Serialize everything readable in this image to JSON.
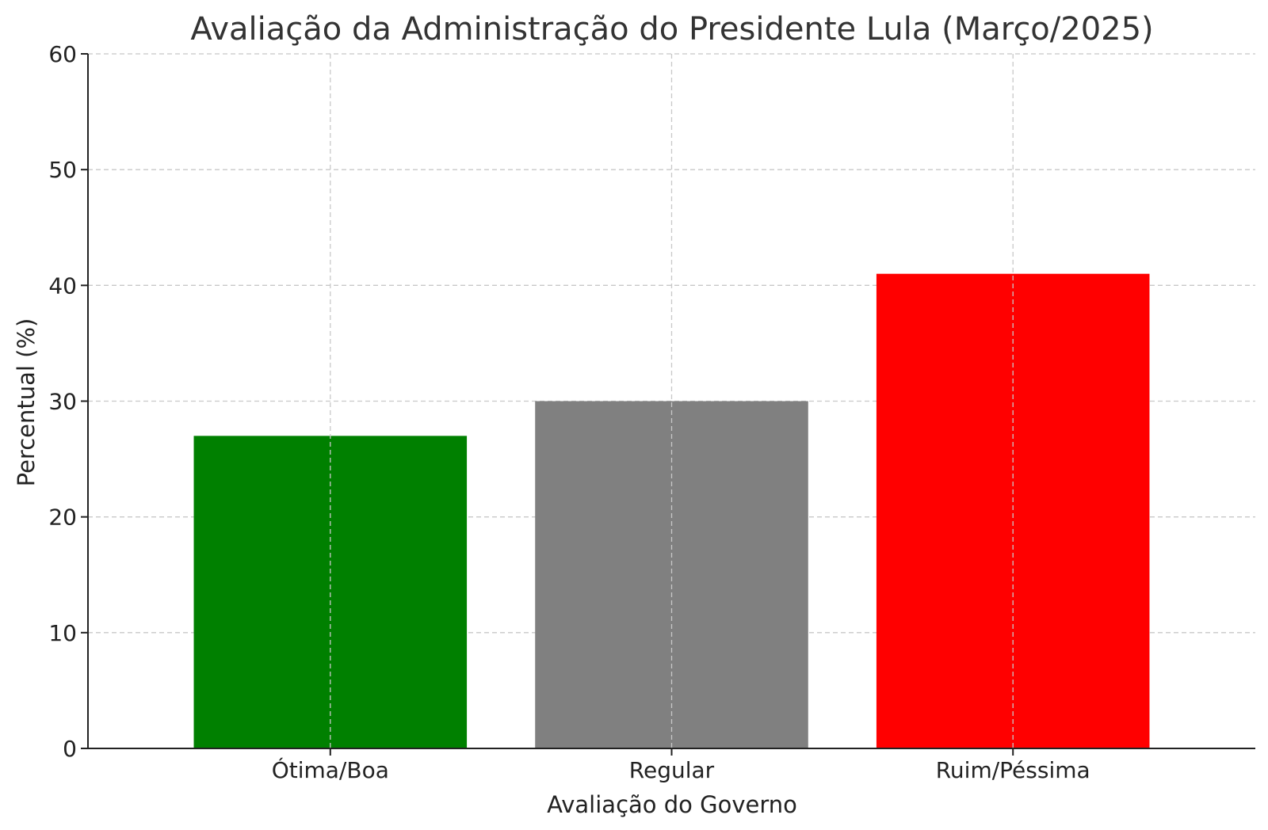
{
  "chart_data": {
    "type": "bar",
    "title": "Avaliação da Administração do Presidente Lula (Março/2025)",
    "xlabel": "Avaliação do Governo",
    "ylabel": "Percentual (%)",
    "categories": [
      "Ótima/Boa",
      "Regular",
      "Ruim/Péssima"
    ],
    "values": [
      27,
      30,
      41
    ],
    "colors": [
      "#008000",
      "#808080",
      "#ff0000"
    ],
    "ylim": [
      0,
      60
    ],
    "yticks": [
      0,
      10,
      20,
      30,
      40,
      50,
      60
    ],
    "grid": true,
    "legend": "none"
  }
}
